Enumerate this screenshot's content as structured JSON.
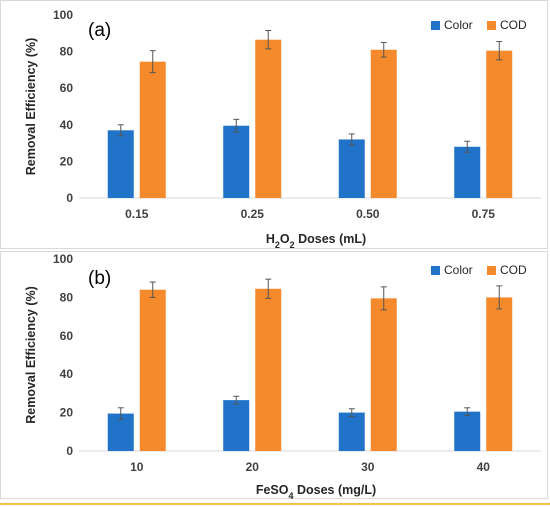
{
  "chart_data": [
    {
      "type": "bar",
      "panel_label": "(a)",
      "categories": [
        "0.15",
        "0.25",
        "0.50",
        "0.75"
      ],
      "series": [
        {
          "name": "Color",
          "color": "#2173c9",
          "values": [
            37,
            39.5,
            32,
            28
          ],
          "errors": [
            3,
            3.5,
            3,
            3
          ]
        },
        {
          "name": "COD",
          "color": "#f58a2c",
          "values": [
            74.5,
            86.5,
            81,
            80.5
          ],
          "errors": [
            6,
            5,
            4,
            5
          ]
        }
      ],
      "ylabel": "Removal Efficiency (%)",
      "xlabel": {
        "main": "H",
        "sub1": "2",
        "mid": "O",
        "sub2": "2",
        "tail": " Doses (mL)"
      },
      "ylim": [
        0,
        100
      ],
      "yticks": [
        0,
        20,
        40,
        60,
        80,
        100
      ],
      "legend_position": "top-right",
      "grid": false
    },
    {
      "type": "bar",
      "panel_label": "(b)",
      "categories": [
        "10",
        "20",
        "30",
        "40"
      ],
      "series": [
        {
          "name": "Color",
          "color": "#2173c9",
          "values": [
            19.5,
            26.5,
            20,
            20.5
          ],
          "errors": [
            3,
            2,
            2,
            2
          ]
        },
        {
          "name": "COD",
          "color": "#f58a2c",
          "values": [
            84,
            84.5,
            79.5,
            80
          ],
          "errors": [
            4,
            5,
            6,
            6
          ]
        }
      ],
      "ylabel": "Removal Efficiency (%)",
      "xlabel": {
        "main": "FeSO",
        "sub1": "4",
        "mid": "",
        "sub2": "",
        "tail": " Doses (mg/L)"
      },
      "ylim": [
        0,
        100
      ],
      "yticks": [
        0,
        20,
        40,
        60,
        80,
        100
      ],
      "legend_position": "top-right",
      "grid": false
    }
  ]
}
